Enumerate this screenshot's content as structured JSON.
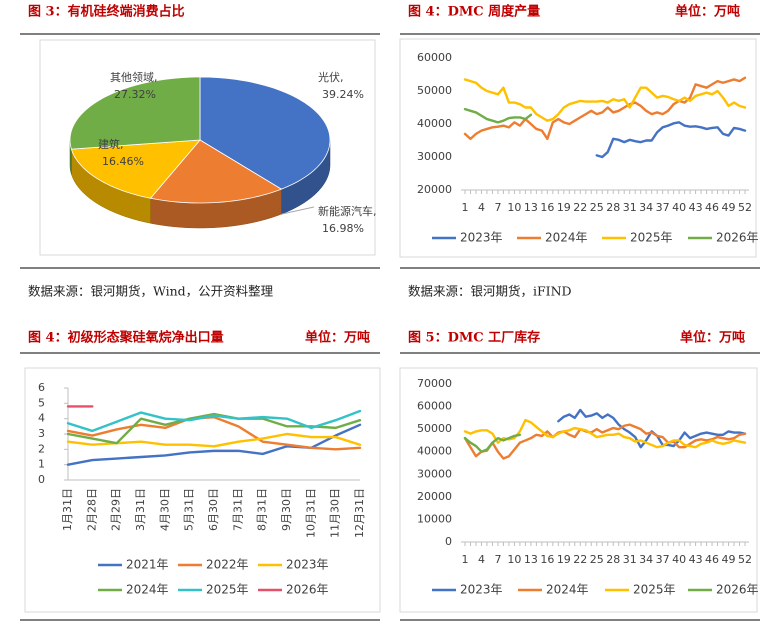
{
  "chart_data": [
    {
      "type": "pie",
      "title": "图 3：有机硅终端消费占比",
      "source": "数据来源：银河期货，Wind，公开资料整理",
      "categories": [
        "光伏,",
        "新能源汽车,",
        "建筑,",
        "其他领域,"
      ],
      "values": [
        39.24,
        16.98,
        16.46,
        27.32
      ],
      "value_labels": [
        "39.24%",
        "16.98%",
        "16.46%",
        "27.32%"
      ],
      "colors": [
        "#4472c4",
        "#ed7d31",
        "#ffc000",
        "#70ad47"
      ]
    },
    {
      "type": "line",
      "title": "图 4：DMC 周度产量",
      "unit": "单位：万吨",
      "source": "数据来源：银河期货，iFIND",
      "x": [
        1,
        2,
        3,
        4,
        5,
        6,
        7,
        8,
        9,
        10,
        11,
        12,
        13,
        14,
        15,
        16,
        17,
        18,
        19,
        20,
        21,
        22,
        23,
        24,
        25,
        26,
        27,
        28,
        29,
        30,
        31,
        32,
        33,
        34,
        35,
        36,
        37,
        38,
        39,
        40,
        41,
        42,
        43,
        44,
        45,
        46,
        47,
        48,
        49,
        50,
        51,
        52
      ],
      "xlim": [
        1,
        52
      ],
      "xticks": [
        1,
        4,
        7,
        10,
        13,
        16,
        19,
        22,
        25,
        28,
        31,
        34,
        37,
        40,
        43,
        46,
        49,
        52
      ],
      "ylim": [
        20000,
        60000
      ],
      "yticks": [
        20000,
        30000,
        40000,
        50000,
        60000
      ],
      "series": [
        {
          "name": "2023年",
          "color": "#4472c4",
          "values": [
            null,
            null,
            null,
            null,
            null,
            null,
            null,
            null,
            null,
            null,
            null,
            null,
            null,
            null,
            null,
            null,
            null,
            null,
            null,
            null,
            null,
            null,
            null,
            null,
            30500,
            30000,
            31500,
            35500,
            35200,
            34500,
            35200,
            34800,
            34500,
            35000,
            35000,
            37500,
            39000,
            39500,
            40200,
            40500,
            39500,
            39200,
            39300,
            39000,
            38500,
            38800,
            39000,
            37000,
            36500,
            38800,
            38500,
            38000
          ]
        },
        {
          "name": "2024年",
          "color": "#ed7d31",
          "values": [
            37000,
            35500,
            37000,
            38000,
            38500,
            39000,
            39200,
            39500,
            39000,
            40500,
            39500,
            41500,
            40000,
            38500,
            38000,
            35500,
            40500,
            41500,
            40500,
            40000,
            41000,
            42000,
            43000,
            44000,
            43000,
            43500,
            45000,
            43500,
            44000,
            45000,
            46000,
            46500,
            45500,
            44000,
            43000,
            43500,
            43000,
            44000,
            46000,
            47000,
            46500,
            48000,
            52000,
            51500,
            51000,
            52000,
            53000,
            52500,
            53000,
            53500,
            53000,
            54000
          ]
        },
        {
          "name": "2025年",
          "color": "#ffc000",
          "values": [
            53500,
            53000,
            52500,
            51000,
            50000,
            49500,
            49000,
            51000,
            46500,
            46500,
            46000,
            45000,
            45000,
            43000,
            42000,
            41000,
            41500,
            43000,
            45000,
            46000,
            46500,
            47000,
            46800,
            46800,
            46800,
            47000,
            46500,
            47500,
            47000,
            47500,
            45000,
            48000,
            51000,
            51000,
            49500,
            48000,
            48500,
            48200,
            47500,
            47000,
            48000,
            47000,
            48500,
            49000,
            49500,
            49000,
            50000,
            48000,
            45500,
            46500,
            45500,
            45000
          ]
        },
        {
          "name": "2026年",
          "color": "#70ad47",
          "values": [
            44500,
            44000,
            43500,
            42500,
            41500,
            41000,
            40500,
            41000,
            41800,
            42000,
            42000,
            41500,
            42800,
            null,
            null,
            null,
            null,
            null,
            null,
            null,
            null,
            null,
            null,
            null,
            null,
            null,
            null,
            null,
            null,
            null,
            null,
            null,
            null,
            null,
            null,
            null,
            null,
            null,
            null,
            null,
            null,
            null,
            null,
            null,
            null,
            null,
            null,
            null,
            null,
            null,
            null,
            null
          ]
        }
      ]
    },
    {
      "type": "line",
      "title": "图 4：初级形态聚硅氧烷净出口量",
      "unit": "单位：万吨",
      "categories": [
        "1月31日",
        "2月28日",
        "2月29日",
        "3月31日",
        "4月30日",
        "5月31日",
        "6月30日",
        "7月31日",
        "8月31日",
        "9月30日",
        "10月31日",
        "11月30日",
        "12月31日"
      ],
      "ylim": [
        0,
        6
      ],
      "yticks": [
        0,
        1,
        2,
        3,
        4,
        5,
        6
      ],
      "series": [
        {
          "name": "2021年",
          "color": "#4472c4",
          "values": [
            1.0,
            1.3,
            1.4,
            1.5,
            1.6,
            1.8,
            1.9,
            1.9,
            1.7,
            2.2,
            2.1,
            2.9,
            3.6
          ]
        },
        {
          "name": "2022年",
          "color": "#ed7d31",
          "values": [
            3.2,
            2.9,
            3.3,
            3.6,
            3.4,
            4.0,
            4.1,
            3.5,
            2.5,
            2.3,
            2.1,
            2.0,
            2.1
          ]
        },
        {
          "name": "2023年",
          "color": "#ffc000",
          "values": [
            2.5,
            2.3,
            2.4,
            2.5,
            2.3,
            2.3,
            2.2,
            2.5,
            2.7,
            3.0,
            2.8,
            2.8,
            2.3
          ]
        },
        {
          "name": "2024年",
          "color": "#70ad47",
          "values": [
            3.0,
            2.7,
            2.4,
            4.0,
            3.6,
            4.0,
            4.3,
            4.0,
            4.0,
            3.5,
            3.5,
            3.4,
            3.9
          ]
        },
        {
          "name": "2025年",
          "color": "#33c2c8",
          "values": [
            3.7,
            3.2,
            3.8,
            4.4,
            4.0,
            3.9,
            4.2,
            4.0,
            4.1,
            4.0,
            3.4,
            3.9,
            4.5
          ]
        },
        {
          "name": "2026年",
          "color": "#e5506b",
          "values": [
            4.8,
            4.8,
            null,
            null,
            null,
            null,
            null,
            null,
            null,
            null,
            null,
            null,
            null
          ]
        }
      ]
    },
    {
      "type": "line",
      "title": "图 5：DMC 工厂库存",
      "unit": "单位：万吨",
      "x": [
        1,
        2,
        3,
        4,
        5,
        6,
        7,
        8,
        9,
        10,
        11,
        12,
        13,
        14,
        15,
        16,
        17,
        18,
        19,
        20,
        21,
        22,
        23,
        24,
        25,
        26,
        27,
        28,
        29,
        30,
        31,
        32,
        33,
        34,
        35,
        36,
        37,
        38,
        39,
        40,
        41,
        42,
        43,
        44,
        45,
        46,
        47,
        48,
        49,
        50,
        51,
        52
      ],
      "xlim": [
        1,
        52
      ],
      "xticks": [
        1,
        4,
        7,
        10,
        13,
        16,
        19,
        22,
        25,
        28,
        31,
        34,
        37,
        40,
        43,
        46,
        49,
        52
      ],
      "ylim": [
        0,
        70000
      ],
      "yticks": [
        0,
        10000,
        20000,
        30000,
        40000,
        50000,
        60000,
        70000
      ],
      "series": [
        {
          "name": "2023年",
          "color": "#4472c4",
          "values": [
            null,
            null,
            null,
            null,
            null,
            null,
            null,
            null,
            null,
            null,
            null,
            null,
            null,
            null,
            null,
            null,
            null,
            53500,
            55500,
            56500,
            55000,
            58500,
            55500,
            56000,
            57000,
            55000,
            56500,
            55000,
            52000,
            50000,
            48500,
            46500,
            42000,
            45000,
            49000,
            47000,
            43000,
            43000,
            42500,
            45000,
            48500,
            46000,
            47000,
            48000,
            48500,
            48000,
            47500,
            47500,
            49000,
            48500,
            48500,
            48000
          ]
        },
        {
          "name": "2024年",
          "color": "#ed7d31",
          "values": [
            46000,
            42000,
            38000,
            40000,
            40500,
            44000,
            40000,
            37000,
            38000,
            41000,
            44000,
            45000,
            46000,
            47500,
            47000,
            49000,
            46500,
            48500,
            49000,
            47500,
            46500,
            50000,
            49000,
            48500,
            50000,
            48500,
            49500,
            50500,
            50000,
            51500,
            52000,
            51000,
            50000,
            48000,
            48500,
            47000,
            46500,
            44000,
            44500,
            42000,
            42000,
            43500,
            45000,
            45500,
            45000,
            45500,
            46500,
            46000,
            45500,
            46000,
            47500,
            48000
          ]
        },
        {
          "name": "2025年",
          "color": "#ffc000",
          "values": [
            49000,
            48000,
            49000,
            49500,
            49500,
            48000,
            44000,
            46000,
            45500,
            46000,
            49000,
            54000,
            53000,
            51000,
            49000,
            47000,
            46500,
            48000,
            49000,
            49500,
            50500,
            50000,
            49500,
            48000,
            46500,
            47000,
            47500,
            47500,
            48000,
            46500,
            46000,
            44500,
            45000,
            44000,
            43000,
            42000,
            42500,
            44000,
            45000,
            45000,
            43000,
            42500,
            42000,
            43500,
            44000,
            45000,
            44000,
            43500,
            44000,
            45000,
            44500,
            44000
          ]
        },
        {
          "name": "2026年",
          "color": "#70ad47",
          "values": [
            46000,
            44000,
            42500,
            40000,
            41000,
            44000,
            46000,
            45000,
            46000,
            47000,
            47500,
            null,
            null,
            null,
            null,
            null,
            null,
            null,
            null,
            null,
            null,
            null,
            null,
            null,
            null,
            null,
            null,
            null,
            null,
            null,
            null,
            null,
            null,
            null,
            null,
            null,
            null,
            null,
            null,
            null,
            null,
            null,
            null,
            null,
            null,
            null,
            null,
            null,
            null,
            null,
            null,
            null
          ]
        }
      ]
    }
  ]
}
